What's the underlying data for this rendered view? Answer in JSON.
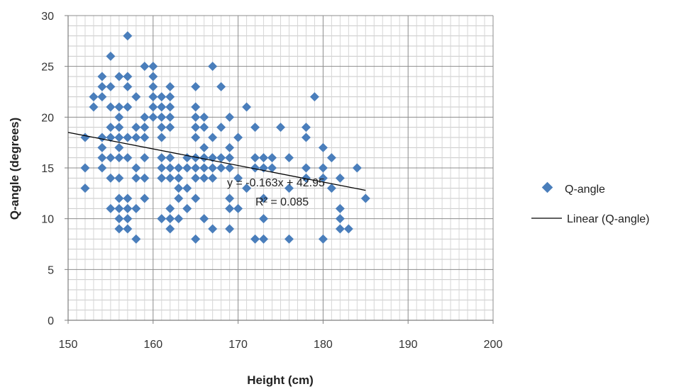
{
  "chart_data": {
    "type": "scatter",
    "xlabel": "Height (cm)",
    "ylabel": "Q-angle (degrees)",
    "xlim": [
      150,
      200
    ],
    "ylim": [
      0,
      30
    ],
    "x_ticks": [
      "150",
      "160",
      "170",
      "180",
      "190",
      "200"
    ],
    "y_ticks": [
      "0",
      "5",
      "10",
      "15",
      "20",
      "25",
      "30"
    ],
    "grid": true,
    "legend_position": "right",
    "marker_color": "#4A7EBB",
    "series": [
      {
        "name": "Q-angle",
        "marker": "diamond",
        "points": [
          [
            152,
            18
          ],
          [
            152,
            15
          ],
          [
            152,
            13
          ],
          [
            153,
            22
          ],
          [
            153,
            21
          ],
          [
            154,
            24
          ],
          [
            154,
            23
          ],
          [
            154,
            22
          ],
          [
            154,
            18
          ],
          [
            154,
            17
          ],
          [
            154,
            16
          ],
          [
            154,
            15
          ],
          [
            155,
            26
          ],
          [
            155,
            23
          ],
          [
            155,
            21
          ],
          [
            155,
            19
          ],
          [
            155,
            18
          ],
          [
            155,
            16
          ],
          [
            155,
            14
          ],
          [
            155,
            11
          ],
          [
            156,
            24
          ],
          [
            156,
            21
          ],
          [
            156,
            20
          ],
          [
            156,
            19
          ],
          [
            156,
            18
          ],
          [
            156,
            17
          ],
          [
            156,
            16
          ],
          [
            156,
            14
          ],
          [
            156,
            12
          ],
          [
            156,
            11
          ],
          [
            156,
            10
          ],
          [
            156,
            9
          ],
          [
            157,
            28
          ],
          [
            157,
            24
          ],
          [
            157,
            23
          ],
          [
            157,
            21
          ],
          [
            157,
            18
          ],
          [
            157,
            16
          ],
          [
            157,
            12
          ],
          [
            157,
            11
          ],
          [
            157,
            10
          ],
          [
            157,
            9
          ],
          [
            158,
            22
          ],
          [
            158,
            19
          ],
          [
            158,
            18
          ],
          [
            158,
            15
          ],
          [
            158,
            14
          ],
          [
            158,
            11
          ],
          [
            158,
            8
          ],
          [
            159,
            25
          ],
          [
            159,
            20
          ],
          [
            159,
            19
          ],
          [
            159,
            18
          ],
          [
            159,
            16
          ],
          [
            159,
            14
          ],
          [
            159,
            12
          ],
          [
            160,
            25
          ],
          [
            160,
            24
          ],
          [
            160,
            23
          ],
          [
            160,
            22
          ],
          [
            160,
            21
          ],
          [
            160,
            20
          ],
          [
            161,
            22
          ],
          [
            161,
            21
          ],
          [
            161,
            20
          ],
          [
            161,
            19
          ],
          [
            161,
            18
          ],
          [
            161,
            16
          ],
          [
            161,
            15
          ],
          [
            161,
            14
          ],
          [
            161,
            10
          ],
          [
            162,
            23
          ],
          [
            162,
            22
          ],
          [
            162,
            21
          ],
          [
            162,
            20
          ],
          [
            162,
            19
          ],
          [
            162,
            16
          ],
          [
            162,
            15
          ],
          [
            162,
            14
          ],
          [
            162,
            11
          ],
          [
            162,
            10
          ],
          [
            162,
            9
          ],
          [
            163,
            15
          ],
          [
            163,
            14
          ],
          [
            163,
            13
          ],
          [
            163,
            12
          ],
          [
            163,
            10
          ],
          [
            164,
            16
          ],
          [
            164,
            15
          ],
          [
            164,
            13
          ],
          [
            164,
            11
          ],
          [
            165,
            23
          ],
          [
            165,
            21
          ],
          [
            165,
            20
          ],
          [
            165,
            19
          ],
          [
            165,
            18
          ],
          [
            165,
            16
          ],
          [
            165,
            15
          ],
          [
            165,
            14
          ],
          [
            165,
            12
          ],
          [
            165,
            8
          ],
          [
            166,
            20
          ],
          [
            166,
            19
          ],
          [
            166,
            17
          ],
          [
            166,
            16
          ],
          [
            166,
            15
          ],
          [
            166,
            14
          ],
          [
            166,
            10
          ],
          [
            167,
            25
          ],
          [
            167,
            18
          ],
          [
            167,
            16
          ],
          [
            167,
            15
          ],
          [
            167,
            14
          ],
          [
            167,
            9
          ],
          [
            168,
            23
          ],
          [
            168,
            19
          ],
          [
            168,
            16
          ],
          [
            168,
            15
          ],
          [
            169,
            20
          ],
          [
            169,
            17
          ],
          [
            169,
            16
          ],
          [
            169,
            15
          ],
          [
            169,
            12
          ],
          [
            169,
            11
          ],
          [
            169,
            9
          ],
          [
            170,
            18
          ],
          [
            170,
            14
          ],
          [
            170,
            11
          ],
          [
            171,
            21
          ],
          [
            171,
            13
          ],
          [
            172,
            19
          ],
          [
            172,
            16
          ],
          [
            172,
            15
          ],
          [
            172,
            8
          ],
          [
            173,
            16
          ],
          [
            173,
            15
          ],
          [
            173,
            12
          ],
          [
            173,
            10
          ],
          [
            173,
            8
          ],
          [
            174,
            16
          ],
          [
            174,
            15
          ],
          [
            175,
            19
          ],
          [
            176,
            16
          ],
          [
            176,
            13
          ],
          [
            176,
            8
          ],
          [
            178,
            19
          ],
          [
            178,
            18
          ],
          [
            178,
            15
          ],
          [
            178,
            14
          ],
          [
            179,
            22
          ],
          [
            180,
            17
          ],
          [
            180,
            15
          ],
          [
            180,
            14
          ],
          [
            180,
            8
          ],
          [
            181,
            16
          ],
          [
            181,
            13
          ],
          [
            182,
            14
          ],
          [
            182,
            11
          ],
          [
            182,
            10
          ],
          [
            182,
            9
          ],
          [
            183,
            9
          ],
          [
            184,
            15
          ],
          [
            185,
            12
          ]
        ]
      },
      {
        "name": "Linear (Q-angle)",
        "type": "trendline",
        "slope": -0.163,
        "intercept": 42.95,
        "x_range": [
          150,
          185
        ],
        "color": "#000000"
      }
    ],
    "annotations": {
      "equation": "y = -0.163x + 42.95",
      "r_squared": "R² = 0.085"
    }
  }
}
